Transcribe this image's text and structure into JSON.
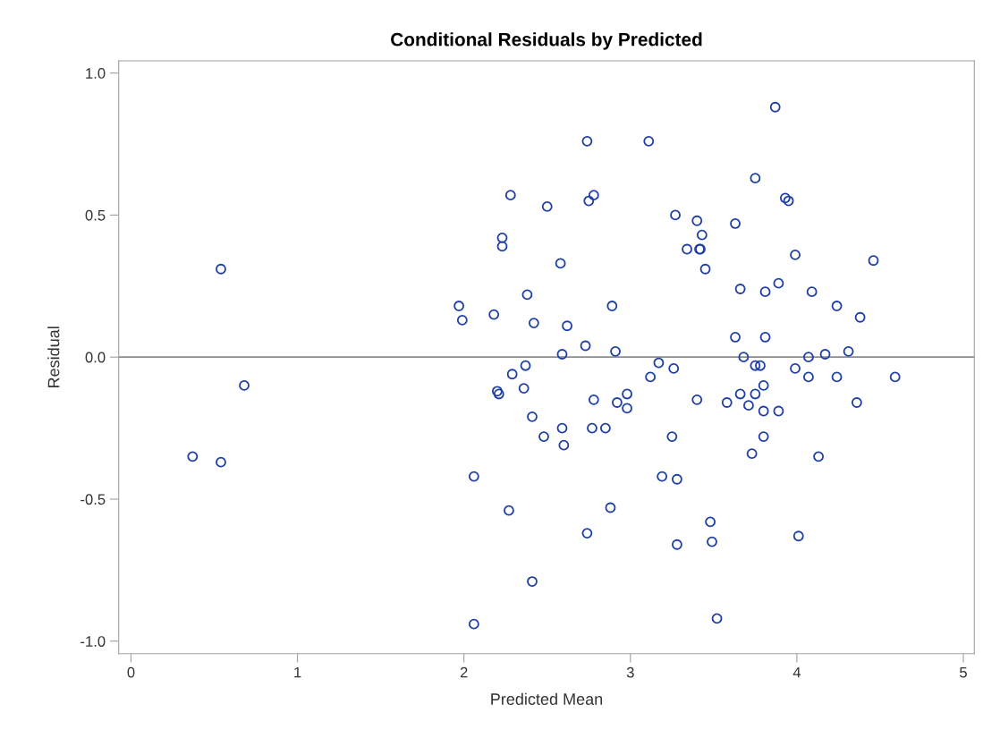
{
  "chart_data": {
    "type": "scatter",
    "title": "Conditional Residuals by Predicted",
    "xlabel": "Predicted Mean",
    "ylabel": "Residual",
    "xlim": [
      -0.074,
      5.066
    ],
    "ylim": [
      -1.044,
      1.043
    ],
    "xticks": [
      0,
      1,
      2,
      3,
      4,
      5
    ],
    "yticks": [
      {
        "value": -1,
        "label": "-1.0"
      },
      {
        "value": -0.5,
        "label": "-0.5"
      },
      {
        "value": 0,
        "label": "0.0"
      },
      {
        "value": 0.5,
        "label": "0.5"
      },
      {
        "value": 1,
        "label": "1.0"
      }
    ],
    "ref_lines": [
      {
        "axis": "y",
        "value": 0,
        "color": "#8c8c8c"
      }
    ],
    "grid": false,
    "marker": "circle",
    "series": [
      {
        "color": "#1f3fa6",
        "x": [
          2.28,
          2.23,
          2.23,
          0.54,
          2.38,
          1.97,
          1.99,
          2.18,
          2.42,
          3.87,
          2.74,
          3.11,
          3.75,
          3.93,
          3.95,
          2.78,
          2.75,
          2.5,
          3.27,
          3.4,
          3.63,
          3.43,
          3.34,
          3.415,
          3.42,
          3.45,
          2.58,
          3.99,
          4.46,
          3.66,
          3.81,
          3.89,
          4.09,
          4.24,
          4.38,
          2.89,
          2.62,
          3.63,
          3.81,
          2.73,
          2.59,
          2.91,
          4.31,
          4.17,
          4.07,
          3.68,
          3.17,
          3.26,
          3.75,
          3.78,
          3.99,
          3.12,
          4.07,
          4.24,
          4.59,
          3.8,
          3.75,
          3.66,
          2.98,
          2.78,
          3.4,
          3.58,
          3.71,
          2.92,
          2.98,
          3.8,
          3.89,
          4.36,
          2.59,
          2.77,
          2.85,
          2.48,
          2.6,
          3.25,
          3.8,
          3.73,
          4.13,
          3.19,
          3.28,
          2.88,
          2.74,
          3.48,
          3.49,
          3.28,
          4.01,
          3.52,
          2.37,
          2.29,
          2.36,
          2.2,
          2.21,
          2.41,
          0.68,
          0.37,
          0.54,
          2.06,
          2.27,
          2.41,
          2.06
        ],
        "values": [
          0.57,
          0.42,
          0.39,
          0.31,
          0.22,
          0.18,
          0.13,
          0.15,
          0.12,
          0.88,
          0.76,
          0.76,
          0.63,
          0.56,
          0.55,
          0.57,
          0.55,
          0.53,
          0.5,
          0.48,
          0.47,
          0.43,
          0.38,
          0.38,
          0.38,
          0.31,
          0.33,
          0.36,
          0.34,
          0.24,
          0.23,
          0.26,
          0.23,
          0.18,
          0.14,
          0.18,
          0.11,
          0.07,
          0.07,
          0.04,
          0.01,
          0.02,
          0.02,
          0.01,
          0.0,
          0.0,
          -0.02,
          -0.04,
          -0.03,
          -0.03,
          -0.04,
          -0.07,
          -0.07,
          -0.07,
          -0.07,
          -0.1,
          -0.13,
          -0.13,
          -0.13,
          -0.15,
          -0.15,
          -0.16,
          -0.17,
          -0.16,
          -0.18,
          -0.19,
          -0.19,
          -0.16,
          -0.25,
          -0.25,
          -0.25,
          -0.28,
          -0.31,
          -0.28,
          -0.28,
          -0.34,
          -0.35,
          -0.42,
          -0.43,
          -0.53,
          -0.62,
          -0.58,
          -0.65,
          -0.66,
          -0.63,
          -0.92,
          -0.03,
          -0.06,
          -0.11,
          -0.12,
          -0.13,
          -0.21,
          -0.1,
          -0.35,
          -0.37,
          -0.42,
          -0.54,
          -0.79,
          -0.94
        ]
      }
    ]
  }
}
